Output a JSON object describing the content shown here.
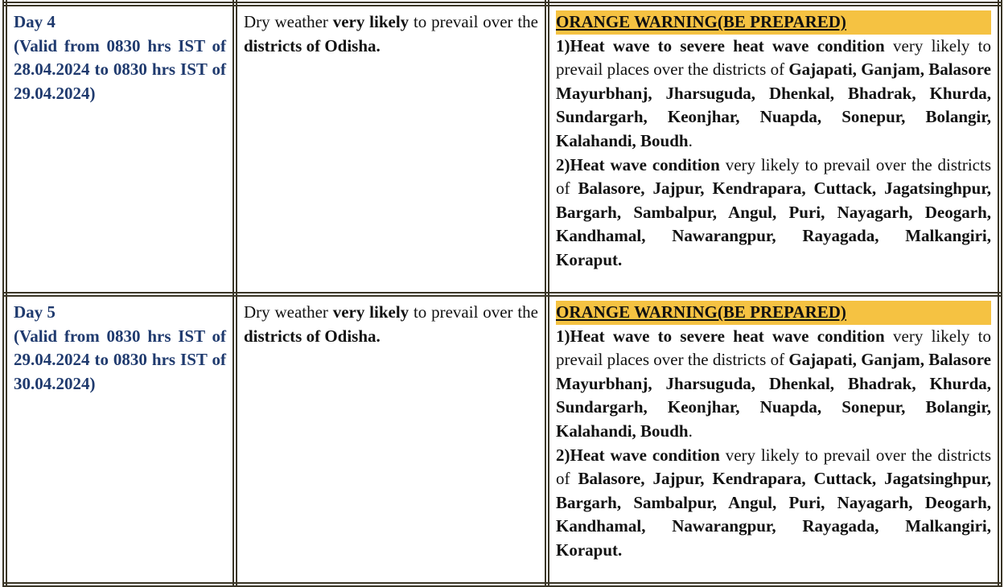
{
  "rows": [
    {
      "day": "Day 4",
      "validity": "(Valid from 0830 hrs IST of 28.04.2024 to 0830 hrs IST of 29.04.2024)",
      "forecast": [
        {
          "b": false,
          "t": "Dry weather  "
        },
        {
          "b": true,
          "t": "very likely"
        },
        {
          "b": false,
          "t": " to prevail over the  "
        },
        {
          "b": true,
          "t": "districts of Odisha."
        }
      ],
      "warning_title": "ORANGE WARNING(BE PREPARED)",
      "warning_paragraphs": [
        [
          {
            "b": true,
            "t": "1)Heat wave to severe heat wave condition"
          },
          {
            "b": false,
            "t": " very likely to prevail  places over the districts of "
          },
          {
            "b": true,
            "t": "Gajapati, Ganjam, Balasore Mayurbhanj, Jharsuguda, Dhenkal, Bhadrak, Khurda, Sundargarh, Keonjhar, Nuapda, Sonepur, Bolangir, Kalahandi, Boudh"
          },
          {
            "b": false,
            "t": "."
          }
        ],
        [
          {
            "b": true,
            "t": "2)Heat wave condition"
          },
          {
            "b": false,
            "t": "  very likely to prevail  over the districts of "
          },
          {
            "b": true,
            "t": "Balasore,  Jajpur, Kendrapara, Cuttack, Jagatsinghpur, Bargarh,  Sambalpur, Angul, Puri, Nayagarh, Deogarh,  Kandhamal, Nawarangpur, Rayagada, Malkangiri, Koraput."
          }
        ]
      ]
    },
    {
      "day": "Day 5",
      "validity": "(Valid from 0830 hrs IST of 29.04.2024 to 0830 hrs IST of 30.04.2024)",
      "forecast": [
        {
          "b": false,
          "t": "Dry weather  "
        },
        {
          "b": true,
          "t": "very likely"
        },
        {
          "b": false,
          "t": " to prevail over the  "
        },
        {
          "b": true,
          "t": "districts of Odisha."
        }
      ],
      "warning_title": "ORANGE WARNING(BE PREPARED)",
      "warning_paragraphs": [
        [
          {
            "b": true,
            "t": "1)Heat wave to severe heat wave condition"
          },
          {
            "b": false,
            "t": " very likely to prevail  places over the districts of "
          },
          {
            "b": true,
            "t": "Gajapati, Ganjam, Balasore Mayurbhanj, Jharsuguda, Dhenkal, Bhadrak, Khurda, Sundargarh, Keonjhar, Nuapda, Sonepur, Bolangir, Kalahandi, Boudh"
          },
          {
            "b": false,
            "t": "."
          }
        ],
        [
          {
            "b": true,
            "t": "2)Heat wave condition"
          },
          {
            "b": false,
            "t": "  very likely to prevail  over the districts of "
          },
          {
            "b": true,
            "t": "Balasore,  Jajpur, Kendrapara, Cuttack, Jagatsinghpur, Bargarh,  Sambalpur, Angul, Puri, Nayagarh, Deogarh,  Kandhamal, Nawarangpur, Rayagada, Malkangiri, Koraput."
          }
        ]
      ]
    }
  ],
  "colors": {
    "day_text": "#1f3a6e",
    "warning_highlight": "#f5c242",
    "border": "#3a3526"
  }
}
